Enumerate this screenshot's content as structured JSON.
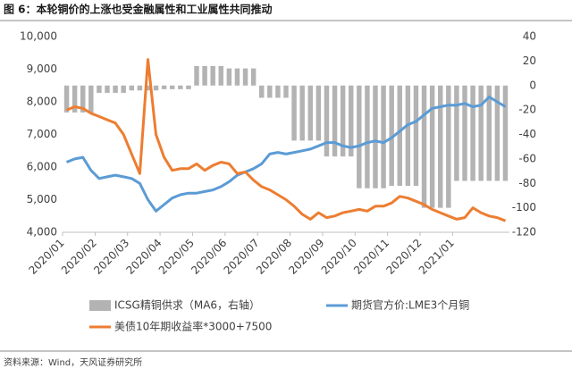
{
  "chart_data": {
    "type": "combo",
    "title": "图 6：本轮铜价的上涨也受金融属性和工业属性共同推动",
    "source": "资料来源：Wind，天风证券研究所",
    "categories": [
      "2020/01",
      null,
      null,
      null,
      "2020/02",
      null,
      null,
      null,
      "2020/03",
      null,
      null,
      null,
      "2020/04",
      null,
      null,
      null,
      "2020/05",
      null,
      null,
      null,
      "2020/06",
      null,
      null,
      null,
      "2020/07",
      null,
      null,
      null,
      "2020/08",
      null,
      null,
      null,
      "2020/09",
      null,
      null,
      null,
      "2020/10",
      null,
      null,
      null,
      "2020/11",
      null,
      null,
      null,
      "2020/12",
      null,
      null,
      null,
      "2021/01",
      null,
      null,
      null,
      null,
      null,
      null
    ],
    "ylim": [
      4000,
      10000
    ],
    "yticks": [
      {
        "value": 4000,
        "label": "4,000"
      },
      {
        "value": 5000,
        "label": "5,000"
      },
      {
        "value": 6000,
        "label": "6,000"
      },
      {
        "value": 7000,
        "label": "7,000"
      },
      {
        "value": 8000,
        "label": "8,000"
      },
      {
        "value": 9000,
        "label": "9,000"
      },
      {
        "value": 10000,
        "label": "10,000"
      }
    ],
    "y2lim": [
      -120,
      40
    ],
    "y2ticks": [
      -120,
      -100,
      -80,
      -60,
      -40,
      -20,
      0,
      20,
      40
    ],
    "series": [
      {
        "name": "ICSG精铜供求（MA6，右轴）",
        "type": "bar",
        "axis": "y2",
        "color": "#b3b3b3",
        "values": [
          -22,
          -22,
          -22,
          -22,
          -6,
          -6,
          -6,
          -6,
          -4,
          -4,
          -4,
          -4,
          -3,
          -3,
          -3,
          -3,
          16,
          16,
          16,
          16,
          14,
          14,
          14,
          14,
          -10,
          -10,
          -10,
          -10,
          -45,
          -45,
          -45,
          -45,
          -58,
          -58,
          -58,
          -58,
          -84,
          -84,
          -84,
          -84,
          -82,
          -82,
          -82,
          -82,
          -100,
          -100,
          -100,
          -100,
          -78,
          -78,
          -78,
          -78,
          -78,
          -78,
          -78
        ]
      },
      {
        "name": "期货官方价:LME3个月铜",
        "type": "line",
        "color": "#5b9bd5",
        "values": [
          6150,
          6250,
          6300,
          5900,
          5650,
          5700,
          5750,
          5700,
          5650,
          5500,
          5000,
          4650,
          4850,
          5050,
          5150,
          5200,
          5200,
          5250,
          5300,
          5400,
          5550,
          5750,
          5850,
          5950,
          6100,
          6400,
          6450,
          6400,
          6450,
          6500,
          6550,
          6650,
          6750,
          6750,
          6650,
          6600,
          6650,
          6750,
          6800,
          6750,
          6900,
          7100,
          7300,
          7400,
          7600,
          7800,
          7850,
          7900,
          7900,
          7950,
          7850,
          7900,
          8150,
          8000,
          7850
        ]
      },
      {
        "name": "美债10年期收益率*3000+7500",
        "type": "line",
        "color": "#ed7d31",
        "values": [
          7750,
          7850,
          7800,
          7650,
          7550,
          7450,
          7350,
          7000,
          6400,
          5800,
          9300,
          7000,
          6300,
          5900,
          5950,
          5950,
          6100,
          5900,
          6050,
          6150,
          6100,
          5800,
          5850,
          5600,
          5400,
          5300,
          5150,
          5000,
          4800,
          4550,
          4400,
          4600,
          4450,
          4500,
          4600,
          4650,
          4700,
          4650,
          4800,
          4800,
          4900,
          5100,
          5050,
          4950,
          4850,
          4700,
          4600,
          4500,
          4400,
          4450,
          4750,
          4600,
          4500,
          4450,
          4350
        ]
      }
    ]
  }
}
